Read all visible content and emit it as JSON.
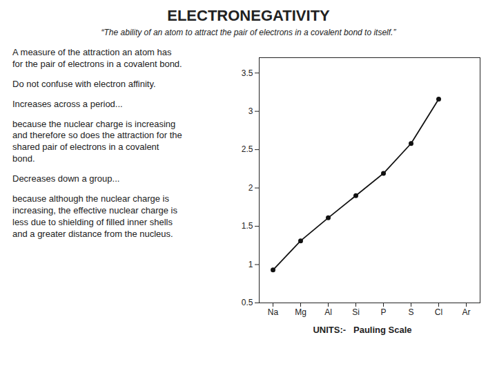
{
  "chart_data": {
    "type": "line",
    "title": "ELECTRONEGATIVITY",
    "subtitle": "“The ability of an atom to attract the pair of electrons in a covalent bond to itself.”",
    "categories": [
      "Na",
      "Mg",
      "Al",
      "Si",
      "P",
      "S",
      "Cl",
      "Ar"
    ],
    "values": [
      0.93,
      1.31,
      1.61,
      1.9,
      2.19,
      2.58,
      3.16,
      null
    ],
    "color": "#111111",
    "marker": "circle",
    "ylim": [
      0.5,
      3.7
    ],
    "yticks": [
      0.5,
      1.0,
      1.5,
      2.0,
      2.5,
      3.0,
      3.5
    ],
    "grid": false,
    "x_label": "UNITS:-   Pauling Scale",
    "annotations": [
      "A measure of the attraction an atom has\nfor the pair of electrons in a covalent bond.",
      "Do not confuse with electron affinity.",
      "Increases across a period...",
      "because the nuclear charge is increasing\nand therefore so does the attraction for the\nshared pair of electrons in a covalent\nbond.",
      "Decreases down a group...",
      "because although the nuclear charge is\nincreasing, the effective nuclear charge is\nless due to shielding of filled inner shells\nand a greater distance from the nucleus."
    ]
  }
}
